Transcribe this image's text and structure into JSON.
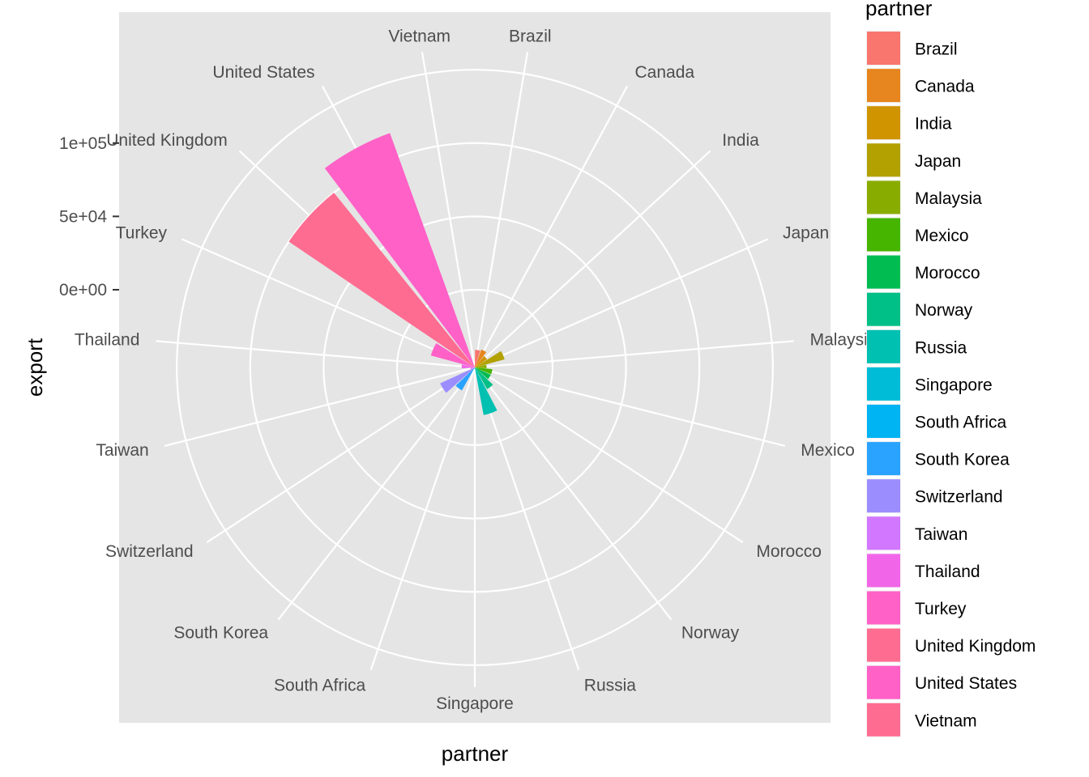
{
  "chart_data": {
    "type": "bar",
    "coord": "polar",
    "xlabel": "partner",
    "ylabel": "export",
    "legend_title": "partner",
    "legend_position": "right",
    "y_ticks": [
      0,
      50000,
      100000
    ],
    "y_tick_labels": [
      "0e+00",
      "5e+04",
      "1e+05"
    ],
    "y_ring_values": [
      -50000,
      0,
      50000,
      100000,
      150000
    ],
    "ylim": [
      -53000,
      165000
    ],
    "categories": [
      "Brazil",
      "Canada",
      "India",
      "Japan",
      "Malaysia",
      "Mexico",
      "Morocco",
      "Norway",
      "Russia",
      "Singapore",
      "South Africa",
      "South Korea",
      "Switzerland",
      "Taiwan",
      "Thailand",
      "Turkey",
      "United Kingdom",
      "United States",
      "Vietnam"
    ],
    "values": [
      -41000,
      -40000,
      -43000,
      -32000,
      -45000,
      -41000,
      -41000,
      -36000,
      -20000,
      -52000,
      -52000,
      -35000,
      -27000,
      -50000,
      -44000,
      -22000,
      100000,
      117000,
      -52000
    ],
    "colors": [
      "#F8766D",
      "#E7851E",
      "#D09400",
      "#B2A100",
      "#89AC00",
      "#45B500",
      "#00BC51",
      "#00C087",
      "#00C0B2",
      "#00BCD6",
      "#00B3F2",
      "#29A3FF",
      "#9C8DFF",
      "#D277FF",
      "#F166E8",
      "#FF61C7",
      "#FF6C91",
      "#FF61C7",
      "#FF6C91"
    ]
  }
}
